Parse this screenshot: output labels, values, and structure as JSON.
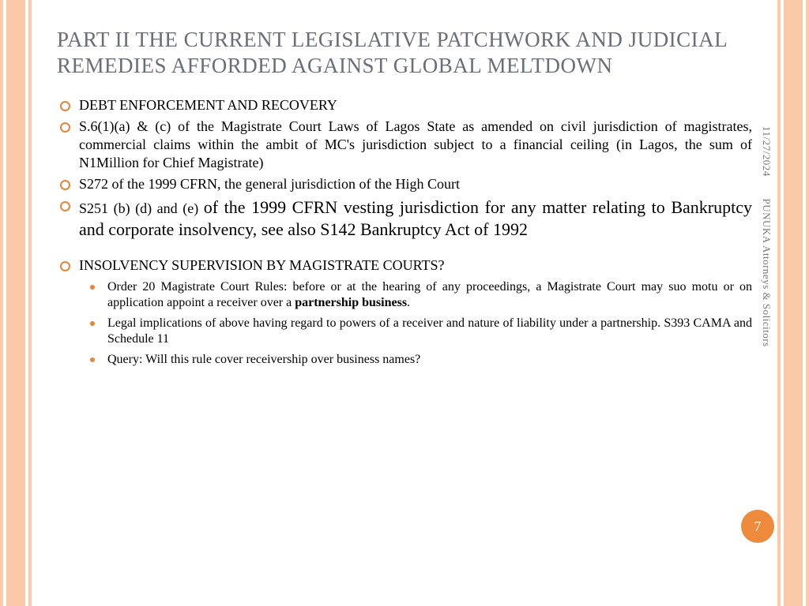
{
  "colors": {
    "border_stripe": "#f9c9a8",
    "bullet_ring": "#e8833a",
    "bullet_dot": "#e8833a",
    "title_text": "#6a6d7a",
    "body_text": "#000000",
    "meta_text": "#7a7a7a",
    "badge_bg": "#ee8a3c",
    "badge_text": "#ffffff",
    "background": "#ffffff"
  },
  "title": "PART II THE CURRENT LEGISLATIVE PATCHWORK AND JUDICIAL REMEDIES AFFORDED AGAINST GLOBAL MELTDOWN",
  "bullets": [
    {
      "text": "DEBT ENFORCEMENT AND RECOVERY"
    },
    {
      "text": "S.6(1)(a) & (c) of the Magistrate Court Laws of Lagos State as amended on civil jurisdiction of magistrates, commercial claims within the ambit of MC's jurisdiction subject to a financial ceiling (in Lagos, the sum of N1Million for Chief Magistrate)"
    },
    {
      "text": "S272 of the 1999 CFRN, the general jurisdiction of the High Court"
    },
    {
      "prefix": "S251 (b) (d) and (e)  ",
      "larger": "of the 1999 CFRN vesting jurisdiction for any matter relating to Bankruptcy and corporate insolvency, see also S142 Bankruptcy Act of 1992"
    },
    {
      "text": "INSOLVENCY SUPERVISION BY MAGISTRATE COURTS?",
      "gap": true,
      "sub": [
        {
          "pre": "Order 20 Magistrate Court Rules: before or at the hearing of any proceedings, a Magistrate Court may suo motu or on application appoint a receiver over a ",
          "bold": "partnership business",
          "post": "."
        },
        {
          "pre": "Legal implications of above having regard to powers of a receiver and nature of liability under a partnership. S393 CAMA and Schedule 11"
        },
        {
          "pre": "Query: Will this rule cover receivership over business names?"
        }
      ]
    }
  ],
  "meta": {
    "date": "11/27/2024",
    "org": "PUNUKA Attorneys & Solicitors"
  },
  "page_number": "7"
}
